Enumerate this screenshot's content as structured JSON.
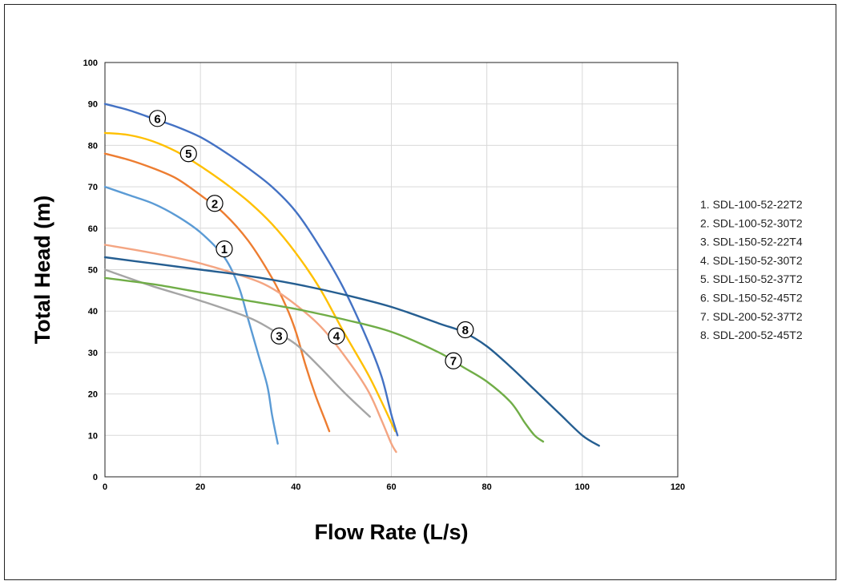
{
  "chart_data": {
    "type": "line",
    "xlabel": "Flow Rate (L/s)",
    "ylabel": "Total Head (m)",
    "xlim": [
      0,
      120
    ],
    "ylim": [
      0,
      100
    ],
    "xticks": [
      0,
      20,
      40,
      60,
      80,
      100,
      120
    ],
    "yticks": [
      0,
      10,
      20,
      30,
      40,
      50,
      60,
      70,
      80,
      90,
      100
    ],
    "grid": true,
    "legend_position": "right",
    "series": [
      {
        "name": "1. SDL-100-52-22T2",
        "marker": "1",
        "color": "#5b9bd5",
        "x": [
          0,
          5,
          10,
          15,
          20,
          25,
          28,
          30,
          32,
          34,
          35,
          36.2
        ],
        "y": [
          70,
          68,
          66,
          63,
          59,
          53,
          46,
          38,
          30,
          22,
          15,
          8
        ],
        "label_at": [
          25,
          55
        ]
      },
      {
        "name": "2. SDL-100-52-30T2",
        "marker": "2",
        "color": "#ed7d31",
        "x": [
          0,
          5,
          10,
          15,
          20,
          25,
          30,
          35,
          38,
          40,
          42,
          44,
          46,
          47
        ],
        "y": [
          78,
          76.5,
          74.5,
          72,
          68,
          63.5,
          57,
          48,
          41,
          35,
          27,
          20,
          14,
          11
        ],
        "label_at": [
          23,
          66
        ]
      },
      {
        "name": "3. SDL-150-52-22T4",
        "marker": "3",
        "color": "#a5a5a5",
        "x": [
          0,
          10,
          20,
          30,
          35,
          40,
          45,
          50,
          55.5
        ],
        "y": [
          50,
          46,
          42.5,
          38.5,
          35.5,
          32,
          26.5,
          20.5,
          14.5
        ],
        "label_at": [
          36.5,
          34
        ]
      },
      {
        "name": "4. SDL-150-52-30T2",
        "marker": "4",
        "color": "#f4a582",
        "x": [
          0,
          10,
          20,
          30,
          35,
          40,
          45,
          50,
          55,
          58,
          60,
          61
        ],
        "y": [
          56,
          54,
          51.5,
          48,
          45.5,
          41.5,
          36.5,
          29.5,
          21,
          13.5,
          8,
          6
        ],
        "label_at": [
          48.5,
          34
        ]
      },
      {
        "name": "5. SDL-150-52-37T2",
        "marker": "5",
        "color": "#ffc000",
        "x": [
          0,
          5,
          10,
          15,
          20,
          25,
          30,
          35,
          40,
          45,
          50,
          55,
          58,
          60.8
        ],
        "y": [
          83,
          82.5,
          81,
          78.5,
          75,
          71,
          66.5,
          61,
          54,
          45.5,
          35,
          25,
          18,
          11
        ],
        "label_at": [
          17.5,
          78
        ]
      },
      {
        "name": "6. SDL-150-52-45T2",
        "marker": "6",
        "color": "#4472c4",
        "x": [
          0,
          5,
          10,
          15,
          20,
          25,
          30,
          35,
          40,
          45,
          50,
          55,
          58,
          60,
          61.3
        ],
        "y": [
          90,
          88.5,
          86.5,
          84.5,
          82,
          78.5,
          74.5,
          70,
          64,
          55.5,
          45.5,
          33,
          24,
          15,
          10
        ],
        "label_at": [
          11,
          86.5
        ]
      },
      {
        "name": "7. SDL-200-52-37T2",
        "marker": "7",
        "color": "#70ad47",
        "x": [
          0,
          10,
          20,
          30,
          40,
          50,
          60,
          70,
          75,
          80,
          85,
          88,
          90,
          91.8
        ],
        "y": [
          48,
          46.5,
          44.5,
          42.5,
          40.5,
          38,
          35,
          30,
          26.5,
          23,
          18,
          13,
          10,
          8.5
        ],
        "label_at": [
          73,
          28
        ]
      },
      {
        "name": "8. SDL-200-52-45T2",
        "marker": "8",
        "color": "#255e91",
        "x": [
          0,
          10,
          20,
          30,
          40,
          50,
          60,
          70,
          75,
          80,
          85,
          90,
          95,
          100,
          103.5
        ],
        "y": [
          53,
          51.5,
          50,
          48.5,
          46.5,
          44,
          41,
          37,
          35,
          31.5,
          26.5,
          21,
          15.5,
          10,
          7.5
        ],
        "label_at": [
          75.5,
          35.5
        ]
      }
    ]
  }
}
